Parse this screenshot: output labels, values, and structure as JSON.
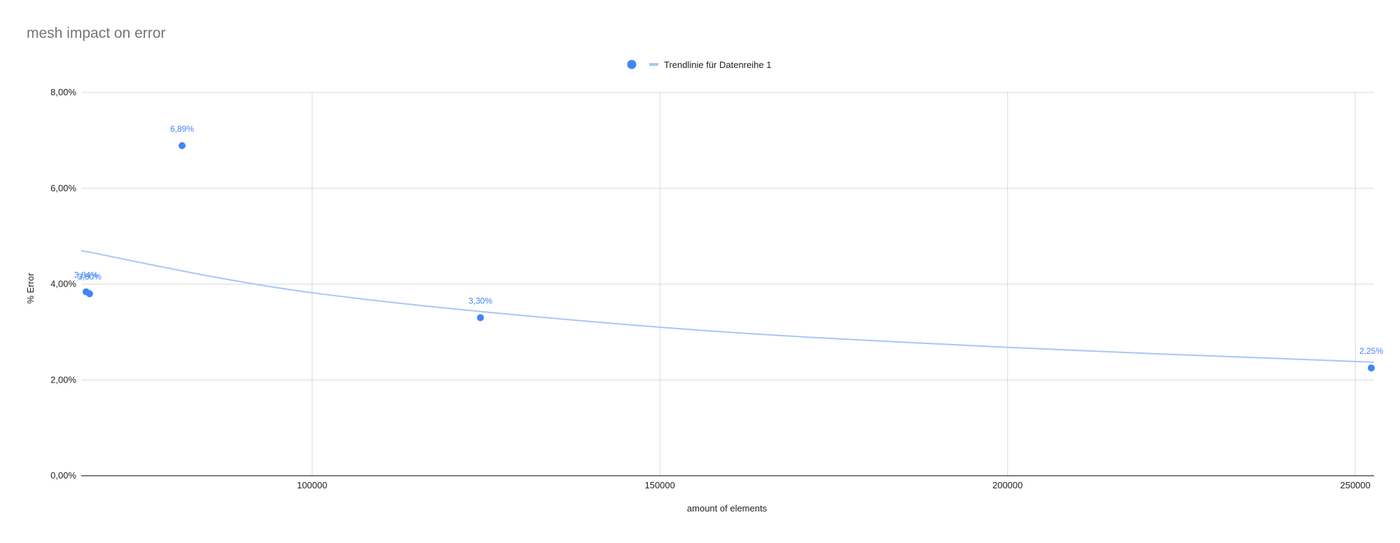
{
  "chart_data": {
    "type": "scatter",
    "title": "mesh impact on error",
    "xlabel": "amount of elements",
    "ylabel": "% Error",
    "xlim": [
      66800,
      252700
    ],
    "ylim": [
      0,
      0.08
    ],
    "x_ticks": [
      100000,
      150000,
      200000,
      250000
    ],
    "x_tick_labels": [
      "100000",
      "150000",
      "200000",
      "250000"
    ],
    "y_ticks": [
      0,
      0.02,
      0.04,
      0.06,
      0.08
    ],
    "y_tick_labels": [
      "0,00%",
      "2,00%",
      "4,00%",
      "6,00%",
      "8,00%"
    ],
    "grid": true,
    "legend": {
      "position": "top",
      "entries": [
        "",
        "Trendlinie für Datenreihe 1"
      ]
    },
    "series": [
      {
        "points": [
          {
            "x": 67500,
            "y": 0.0384,
            "label": "3,84%"
          },
          {
            "x": 68000,
            "y": 0.038,
            "label": "3,80%"
          },
          {
            "x": 81300,
            "y": 0.0689,
            "label": "6,89%"
          },
          {
            "x": 124200,
            "y": 0.033,
            "label": "3,30%"
          },
          {
            "x": 252300,
            "y": 0.0225,
            "label": "2,25%"
          }
        ]
      }
    ],
    "trendline": {
      "name": "Trendlinie für Datenreihe 1",
      "type": "power",
      "points": [
        {
          "x": 66800,
          "y": 0.047
        },
        {
          "x": 100000,
          "y": 0.0382
        },
        {
          "x": 150000,
          "y": 0.031
        },
        {
          "x": 200000,
          "y": 0.0268
        },
        {
          "x": 252700,
          "y": 0.0237
        }
      ]
    },
    "colors": {
      "series": "#4285f4",
      "trendline": "#a8c7f7",
      "grid": "#d9d9d9",
      "axis": "#333333",
      "title": "#757575",
      "text": "#222222"
    }
  }
}
